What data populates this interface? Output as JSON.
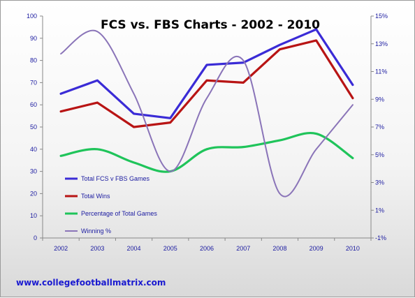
{
  "chart_data": {
    "type": "line",
    "title": "FCS vs. FBS Charts - 2002 - 2010",
    "categories": [
      "2002",
      "2003",
      "2004",
      "2005",
      "2006",
      "2007",
      "2008",
      "2009",
      "2010"
    ],
    "ylim_left": [
      0,
      100
    ],
    "yticks_left": [
      "0",
      "10",
      "20",
      "30",
      "40",
      "50",
      "60",
      "70",
      "80",
      "90",
      "100"
    ],
    "ylim_right": [
      -1,
      15
    ],
    "yticks_right": [
      "-1%",
      "1%",
      "3%",
      "5%",
      "7%",
      "9%",
      "11%",
      "13%",
      "15%"
    ],
    "grid": false,
    "legend_position": "lower-left",
    "series": [
      {
        "name": "Total FCS v FBS Games",
        "axis": "left",
        "color": "#3a2bd6",
        "smooth": false,
        "values": [
          65,
          71,
          56,
          54,
          78,
          79,
          87,
          94,
          69
        ]
      },
      {
        "name": "Total Wins",
        "axis": "left",
        "color": "#b81414",
        "smooth": false,
        "values": [
          57,
          61,
          50,
          52,
          71,
          70,
          85,
          89,
          63
        ]
      },
      {
        "name": "Percentage of Total Games",
        "axis": "left",
        "color": "#1fc45a",
        "smooth": true,
        "values": [
          37,
          40,
          34,
          30,
          40,
          41,
          44,
          47,
          36
        ]
      },
      {
        "name": "Winning %",
        "axis": "left",
        "color": "#8a74b8",
        "smooth": true,
        "values": [
          83,
          93,
          65,
          30,
          63,
          80,
          20,
          40,
          60
        ]
      }
    ]
  },
  "footer": {
    "url": "www.collegefootballmatrix.com"
  }
}
